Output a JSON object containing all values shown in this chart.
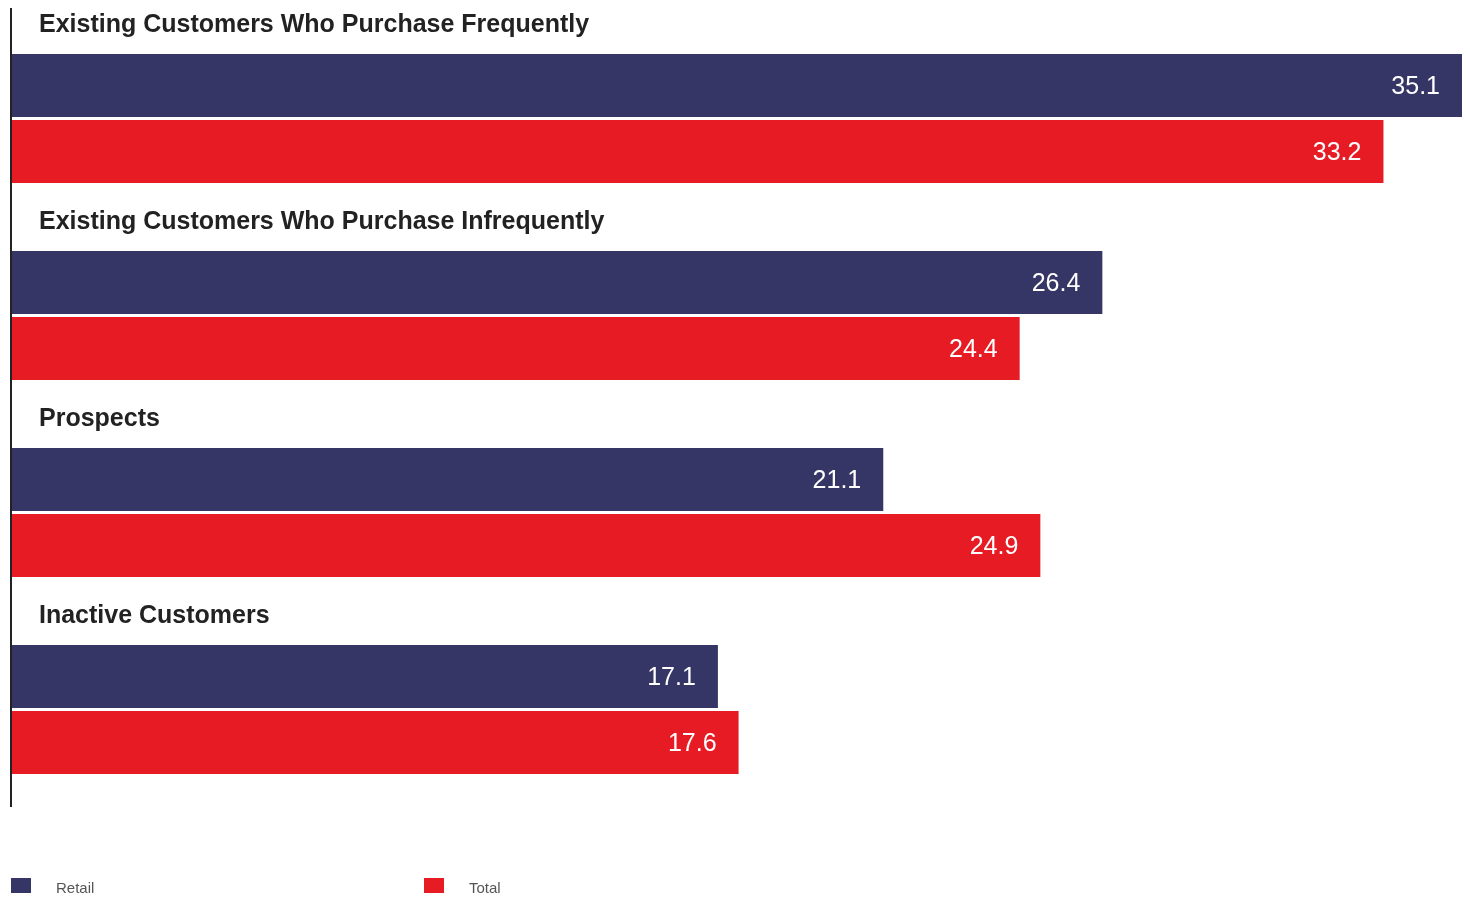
{
  "chart_data": {
    "type": "bar",
    "orientation": "horizontal",
    "categories": [
      "Existing Customers Who Purchase Frequently",
      "Existing Customers Who Purchase Infrequently",
      "Prospects",
      "Inactive Customers"
    ],
    "series": [
      {
        "name": "Retail",
        "color": "#353566",
        "values": [
          35.1,
          26.4,
          21.1,
          17.1
        ]
      },
      {
        "name": "Total",
        "color": "#e61b23",
        "values": [
          33.2,
          24.4,
          24.9,
          17.6
        ]
      }
    ],
    "data_labels": true,
    "legend": "bottom left"
  }
}
